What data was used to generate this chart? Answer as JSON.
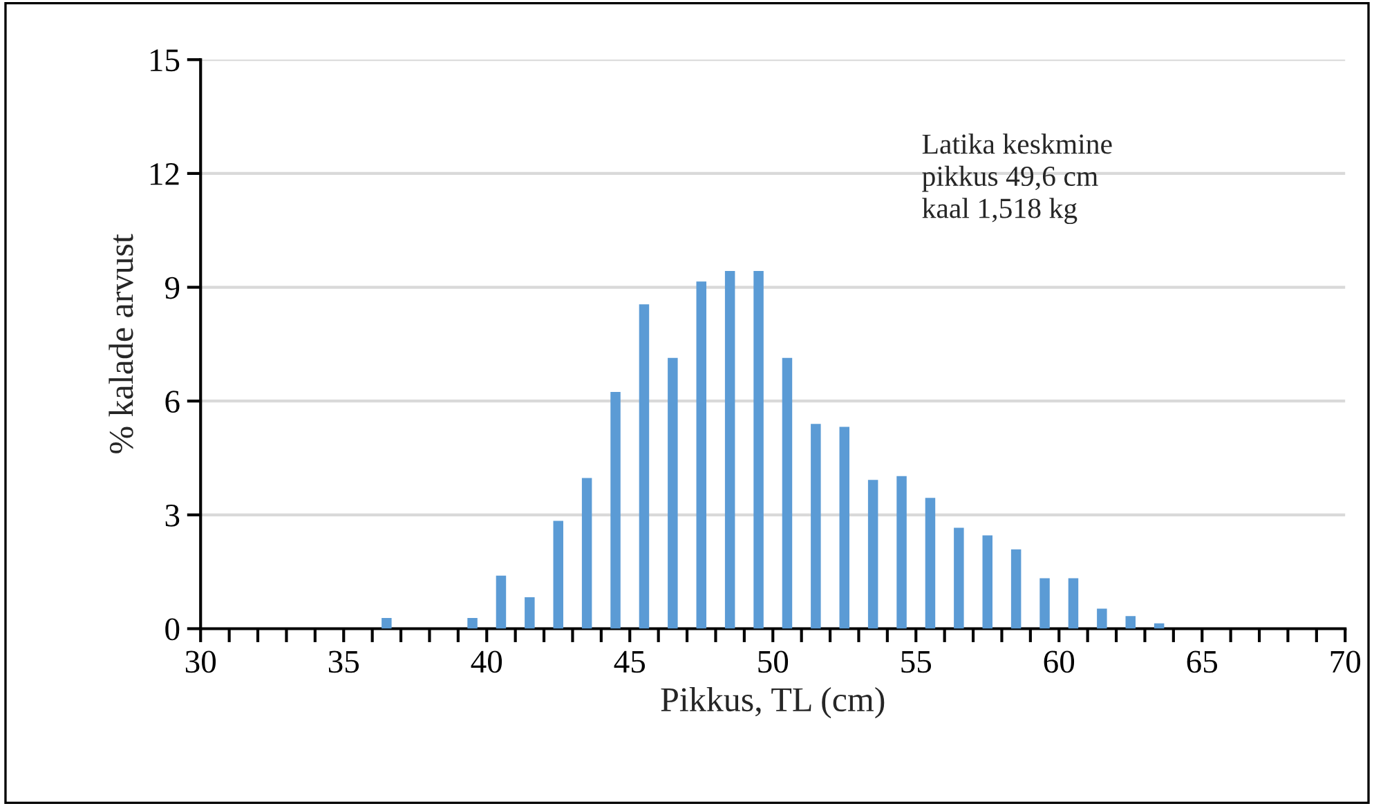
{
  "chart_data": {
    "type": "histogram",
    "xlabel": "Pikkus, TL (cm)",
    "ylabel": "% kalade arvust",
    "annotations": [
      "Latika keskmine\npikkus 49,6 cm\nkaal 1,518 kg"
    ],
    "bins": [
      30,
      31,
      32,
      33,
      34,
      35,
      36,
      37,
      38,
      39,
      40,
      41,
      42,
      43,
      44,
      45,
      46,
      47,
      48,
      49,
      50,
      51,
      52,
      53,
      54,
      55,
      56,
      57,
      58,
      59,
      60,
      61,
      62,
      63,
      64,
      65,
      66,
      67,
      68,
      69,
      70
    ],
    "values": [
      0,
      0,
      0,
      0,
      0,
      0,
      0.28,
      0,
      0,
      0.28,
      1.4,
      0.83,
      2.84,
      3.97,
      6.24,
      8.55,
      7.14,
      9.15,
      9.43,
      9.43,
      7.14,
      5.4,
      5.32,
      3.92,
      4.02,
      3.45,
      2.66,
      2.46,
      2.09,
      1.33,
      1.33,
      0.53,
      0.33,
      0.14,
      0,
      0,
      0,
      0,
      0,
      0
    ],
    "color": "#5b9bd5",
    "xlim": [
      30,
      70
    ],
    "xticks": [
      30,
      {
        "value": 31,
        "label": null
      },
      {
        "value": 32,
        "label": null
      },
      {
        "value": 33,
        "label": null
      },
      {
        "value": 34,
        "label": null
      },
      35,
      {
        "value": 36,
        "label": null
      },
      {
        "value": 37,
        "label": null
      },
      {
        "value": 38,
        "label": null
      },
      {
        "value": 39,
        "label": null
      },
      40,
      {
        "value": 41,
        "label": null
      },
      {
        "value": 42,
        "label": null
      },
      {
        "value": 43,
        "label": null
      },
      {
        "value": 44,
        "label": null
      },
      45,
      {
        "value": 46,
        "label": null
      },
      {
        "value": 47,
        "label": null
      },
      {
        "value": 48,
        "label": null
      },
      {
        "value": 49,
        "label": null
      },
      50,
      {
        "value": 51,
        "label": null
      },
      {
        "value": 52,
        "label": null
      },
      {
        "value": 53,
        "label": null
      },
      {
        "value": 54,
        "label": null
      },
      55,
      {
        "value": 56,
        "label": null
      },
      {
        "value": 57,
        "label": null
      },
      {
        "value": 58,
        "label": null
      },
      {
        "value": 59,
        "label": null
      },
      60,
      {
        "value": 61,
        "label": null
      },
      {
        "value": 62,
        "label": null
      },
      {
        "value": 63,
        "label": null
      },
      {
        "value": 64,
        "label": null
      },
      65,
      {
        "value": 66,
        "label": null
      },
      {
        "value": 67,
        "label": null
      },
      {
        "value": 68,
        "label": null
      },
      {
        "value": 69,
        "label": null
      },
      70
    ],
    "ylim": [
      0,
      15
    ],
    "yticks": [
      0,
      3,
      6,
      9,
      12,
      15
    ],
    "grid": "y",
    "legend": false
  }
}
